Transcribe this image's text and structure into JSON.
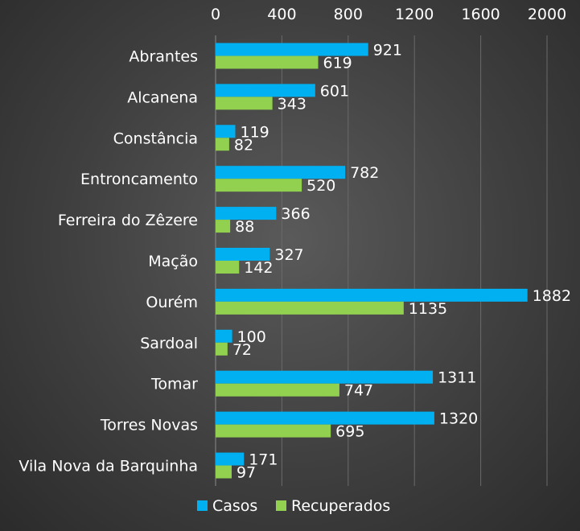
{
  "chart_data": {
    "type": "bar",
    "orientation": "horizontal",
    "categories": [
      "Abrantes",
      "Alcanena",
      "Constância",
      "Entroncamento",
      "Ferreira do Zêzere",
      "Mação",
      "Ourém",
      "Sardoal",
      "Tomar",
      "Torres Novas",
      "Vila Nova da Barquinha"
    ],
    "series": [
      {
        "name": "Casos",
        "color": "#00B0F0",
        "values": [
          921,
          601,
          119,
          782,
          366,
          327,
          1882,
          100,
          1311,
          1320,
          171
        ]
      },
      {
        "name": "Recuperados",
        "color": "#92D050",
        "values": [
          619,
          343,
          82,
          520,
          88,
          142,
          1135,
          72,
          747,
          695,
          97
        ]
      }
    ],
    "xlim": [
      0,
      2000
    ],
    "xticks": [
      "0",
      "400",
      "800",
      "1200",
      "1600",
      "2000"
    ],
    "xaxis_position": "top",
    "grid": true,
    "legend": "bottom"
  }
}
